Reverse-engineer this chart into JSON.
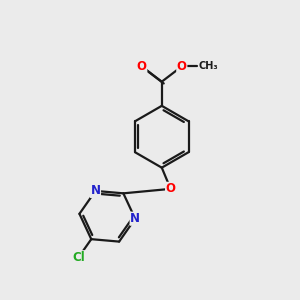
{
  "background_color": "#ebebeb",
  "bond_color": "#1a1a1a",
  "bond_width": 1.6,
  "atom_colors": {
    "O": "#ff0000",
    "N": "#2222cc",
    "Cl": "#22aa22",
    "C": "#1a1a1a"
  },
  "font_size_atom": 8.5,
  "figsize": [
    3.0,
    3.0
  ],
  "dpi": 100,
  "xlim": [
    0,
    10
  ],
  "ylim": [
    0,
    10
  ]
}
